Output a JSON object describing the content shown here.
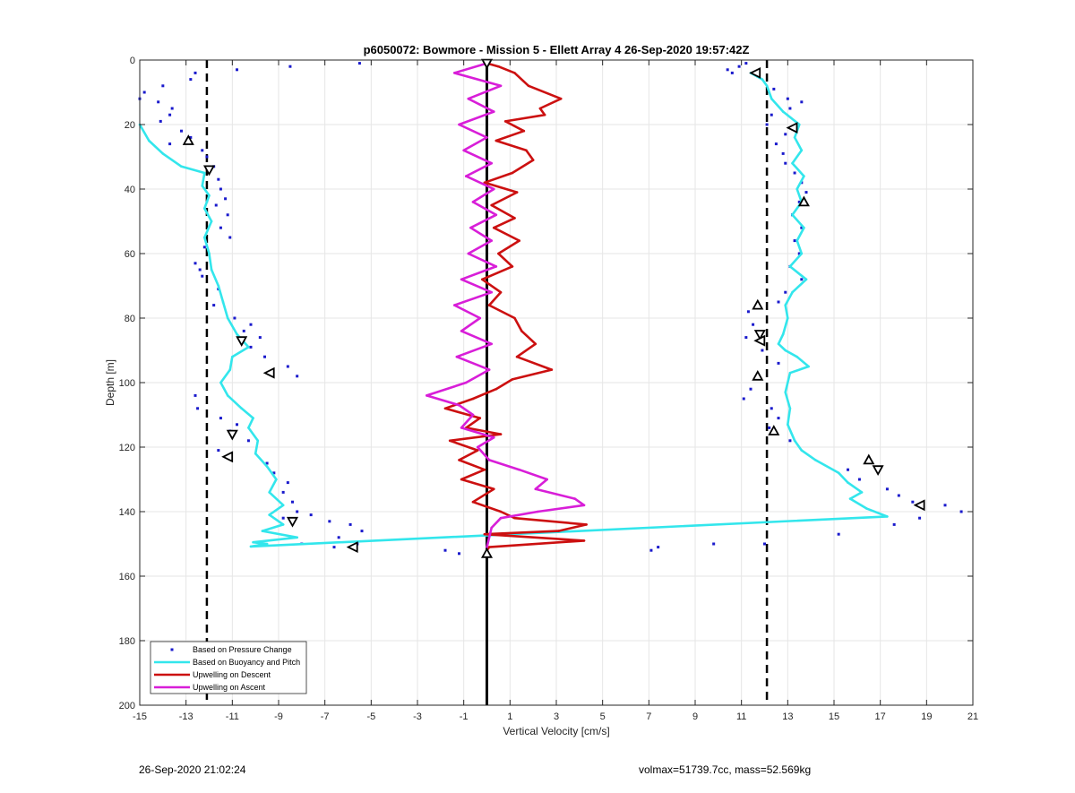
{
  "chart_data": {
    "type": "line",
    "title": "p6050072: Bowmore - Mission 5 - Ellett Array 4 26-Sep-2020 19:57:42Z",
    "xlabel": "Vertical Velocity [cm/s]",
    "ylabel": "Depth [m]",
    "xlim": [
      -15,
      21
    ],
    "ylim": [
      0,
      200
    ],
    "y_reversed": true,
    "grid": true,
    "legend_position": "bottom-left",
    "xticks": [
      -15,
      -13,
      -11,
      -9,
      -7,
      -5,
      -3,
      -1,
      1,
      3,
      5,
      7,
      9,
      11,
      13,
      15,
      17,
      19,
      21
    ],
    "yticks": [
      0,
      20,
      40,
      60,
      80,
      100,
      120,
      140,
      160,
      180,
      200
    ],
    "reference_lines": [
      {
        "style": "dashed",
        "color": "#000000",
        "x": -12.1
      },
      {
        "style": "solid",
        "color": "#000000",
        "x": 0
      },
      {
        "style": "dashed",
        "color": "#000000",
        "x": 12.1
      }
    ],
    "series": [
      {
        "name": "Based on Pressure Change",
        "kind": "points",
        "color": "#1a1acc",
        "points": [
          [
            -5.5,
            1
          ],
          [
            -8.5,
            2
          ],
          [
            -10.8,
            3
          ],
          [
            -12.6,
            4
          ],
          [
            -12.8,
            6
          ],
          [
            -14,
            8
          ],
          [
            -14.8,
            10
          ],
          [
            -15,
            12
          ],
          [
            -14.2,
            13
          ],
          [
            -13.6,
            15
          ],
          [
            -13.7,
            17
          ],
          [
            -14.1,
            19
          ],
          [
            -13.2,
            22
          ],
          [
            -12.8,
            24
          ],
          [
            -13.7,
            26
          ],
          [
            -12.3,
            28
          ],
          [
            -12.1,
            30
          ],
          [
            -11.8,
            33
          ],
          [
            -11.6,
            37
          ],
          [
            -11.5,
            40
          ],
          [
            -11.3,
            43
          ],
          [
            -11.7,
            45
          ],
          [
            -11.2,
            48
          ],
          [
            -11.5,
            52
          ],
          [
            -11.1,
            55
          ],
          [
            -12.2,
            58
          ],
          [
            -12.6,
            63
          ],
          [
            -12.4,
            65
          ],
          [
            -12.3,
            67
          ],
          [
            -11.6,
            71
          ],
          [
            -11.8,
            76
          ],
          [
            -10.9,
            80
          ],
          [
            -10.2,
            82
          ],
          [
            -10.5,
            84
          ],
          [
            -9.8,
            86
          ],
          [
            -10.2,
            89
          ],
          [
            -9.6,
            92
          ],
          [
            -8.6,
            95
          ],
          [
            -8.2,
            98
          ],
          [
            -12.6,
            104
          ],
          [
            -12.5,
            108
          ],
          [
            -11.5,
            111
          ],
          [
            -10.8,
            113
          ],
          [
            -11.1,
            115
          ],
          [
            -10.3,
            118
          ],
          [
            -11.6,
            121
          ],
          [
            -9.5,
            125
          ],
          [
            -9.2,
            128
          ],
          [
            -8.6,
            131
          ],
          [
            -8.8,
            134
          ],
          [
            -8.4,
            137
          ],
          [
            -8.2,
            140
          ],
          [
            -7.6,
            141
          ],
          [
            -8.8,
            142
          ],
          [
            -6.8,
            143
          ],
          [
            -5.9,
            144
          ],
          [
            -5.4,
            146
          ],
          [
            -6.4,
            148
          ],
          [
            -5.6,
            150
          ],
          [
            -6.6,
            151
          ],
          [
            -8,
            150
          ],
          [
            -1.8,
            152
          ],
          [
            -1.2,
            153
          ],
          [
            7.1,
            152
          ],
          [
            7.4,
            151
          ],
          [
            9.8,
            150
          ],
          [
            11.2,
            1
          ],
          [
            10.9,
            2
          ],
          [
            10.4,
            3
          ],
          [
            10.6,
            4
          ],
          [
            11.7,
            5
          ],
          [
            12.4,
            9
          ],
          [
            13,
            12
          ],
          [
            13.6,
            13
          ],
          [
            13.1,
            15
          ],
          [
            12.3,
            17
          ],
          [
            12.1,
            20
          ],
          [
            12.9,
            23
          ],
          [
            12.5,
            26
          ],
          [
            12.8,
            29
          ],
          [
            12.9,
            32
          ],
          [
            13.3,
            35
          ],
          [
            13.6,
            38
          ],
          [
            13.8,
            41
          ],
          [
            13.5,
            44
          ],
          [
            13.2,
            48
          ],
          [
            13.6,
            52
          ],
          [
            13.3,
            56
          ],
          [
            13.5,
            60
          ],
          [
            13.1,
            64
          ],
          [
            13.6,
            68
          ],
          [
            12.9,
            72
          ],
          [
            12.6,
            75
          ],
          [
            11.3,
            78
          ],
          [
            11.5,
            82
          ],
          [
            11.2,
            86
          ],
          [
            11.9,
            90
          ],
          [
            12.6,
            94
          ],
          [
            11.7,
            98
          ],
          [
            11.4,
            102
          ],
          [
            11.1,
            105
          ],
          [
            12.3,
            108
          ],
          [
            12.6,
            111
          ],
          [
            12.2,
            114
          ],
          [
            13.1,
            118
          ],
          [
            15.6,
            127
          ],
          [
            16.1,
            130
          ],
          [
            17.3,
            133
          ],
          [
            17.8,
            135
          ],
          [
            18.4,
            137
          ],
          [
            19.8,
            138
          ],
          [
            20.5,
            140
          ],
          [
            18.7,
            142
          ],
          [
            17.6,
            144
          ],
          [
            15.2,
            147
          ],
          [
            12,
            150
          ]
        ]
      },
      {
        "name": "Based on Buoyancy and Pitch",
        "kind": "line",
        "color": "#33e6ec",
        "points": [
          [
            -15,
            20
          ],
          [
            -14.6,
            25
          ],
          [
            -14,
            29
          ],
          [
            -13.2,
            33
          ],
          [
            -12.2,
            35
          ],
          [
            -12.3,
            39
          ],
          [
            -12,
            42
          ],
          [
            -12.2,
            46
          ],
          [
            -11.9,
            50
          ],
          [
            -12.2,
            55
          ],
          [
            -12,
            60
          ],
          [
            -11.9,
            65
          ],
          [
            -11.6,
            70
          ],
          [
            -11.4,
            75
          ],
          [
            -11.2,
            80
          ],
          [
            -10.8,
            85
          ],
          [
            -10.3,
            89
          ],
          [
            -11,
            92
          ],
          [
            -11.1,
            96
          ],
          [
            -11.5,
            100
          ],
          [
            -11.2,
            104
          ],
          [
            -10.6,
            108
          ],
          [
            -10.1,
            111
          ],
          [
            -10.3,
            114
          ],
          [
            -9.9,
            118
          ],
          [
            -10,
            122
          ],
          [
            -9.5,
            126
          ],
          [
            -9.1,
            130
          ],
          [
            -9.4,
            134
          ],
          [
            -8.8,
            138
          ],
          [
            -9.4,
            141
          ],
          [
            -8.8,
            144
          ],
          [
            -9.7,
            146
          ],
          [
            -8.2,
            148
          ],
          [
            -10.1,
            149.5
          ],
          [
            -9.5,
            150
          ],
          [
            -10.2,
            150.8
          ],
          [
            17.3,
            141.5
          ],
          [
            16.4,
            139
          ],
          [
            15.7,
            136
          ],
          [
            16.2,
            134
          ],
          [
            15.6,
            131
          ],
          [
            15.2,
            128
          ],
          [
            14.2,
            124
          ],
          [
            13.6,
            121
          ],
          [
            13.3,
            118
          ],
          [
            13,
            113
          ],
          [
            13.1,
            108
          ],
          [
            12.9,
            103
          ],
          [
            13.1,
            97
          ],
          [
            13.9,
            95
          ],
          [
            13.4,
            92
          ],
          [
            12.9,
            90
          ],
          [
            12.6,
            88
          ],
          [
            12.8,
            85
          ],
          [
            13,
            80
          ],
          [
            12.9,
            76
          ],
          [
            13.2,
            72
          ],
          [
            13.8,
            68
          ],
          [
            13.1,
            64
          ],
          [
            13.6,
            60
          ],
          [
            13.4,
            56
          ],
          [
            13.7,
            52
          ],
          [
            13.2,
            48
          ],
          [
            13.6,
            44
          ],
          [
            13.4,
            40
          ],
          [
            13.7,
            36
          ],
          [
            13.2,
            32
          ],
          [
            13.6,
            28
          ],
          [
            13.3,
            24
          ],
          [
            13.5,
            20
          ],
          [
            12.8,
            16
          ],
          [
            12.3,
            12
          ],
          [
            12.1,
            8
          ],
          [
            11.9,
            6
          ],
          [
            11.4,
            4
          ]
        ]
      },
      {
        "name": "Upwelling on Descent",
        "kind": "line",
        "color": "#cc1010",
        "points": [
          [
            0,
            1
          ],
          [
            0.5,
            2
          ],
          [
            1.2,
            4
          ],
          [
            1.8,
            8
          ],
          [
            3.2,
            12
          ],
          [
            2.3,
            15
          ],
          [
            2.5,
            17
          ],
          [
            0.8,
            19
          ],
          [
            1.6,
            22
          ],
          [
            0.4,
            25
          ],
          [
            1.7,
            28
          ],
          [
            2,
            31
          ],
          [
            1.1,
            35
          ],
          [
            -0.1,
            38
          ],
          [
            1.3,
            41
          ],
          [
            0.2,
            45
          ],
          [
            1.2,
            49
          ],
          [
            0.3,
            52
          ],
          [
            1.4,
            56
          ],
          [
            0.5,
            60
          ],
          [
            1.1,
            64
          ],
          [
            -0.2,
            68
          ],
          [
            0.6,
            72
          ],
          [
            0.1,
            76
          ],
          [
            1.2,
            80
          ],
          [
            1.5,
            84
          ],
          [
            2.1,
            88
          ],
          [
            1.3,
            92
          ],
          [
            2.8,
            96
          ],
          [
            1.1,
            99
          ],
          [
            0.4,
            102
          ],
          [
            -0.6,
            105
          ],
          [
            -1.8,
            108
          ],
          [
            -0.3,
            111
          ],
          [
            -0.9,
            114
          ],
          [
            0.6,
            116
          ],
          [
            -1.6,
            118
          ],
          [
            -0.4,
            121
          ],
          [
            -1.2,
            124
          ],
          [
            -0.1,
            127
          ],
          [
            -1.1,
            130
          ],
          [
            0.3,
            133
          ],
          [
            -0.6,
            137
          ],
          [
            0.6,
            140
          ],
          [
            1.2,
            142
          ],
          [
            4.3,
            144
          ],
          [
            3.1,
            146
          ],
          [
            -0.1,
            147
          ],
          [
            4.2,
            149
          ],
          [
            0.1,
            151
          ],
          [
            0,
            152
          ]
        ]
      },
      {
        "name": "Upwelling on Ascent",
        "kind": "line",
        "color": "#d81ed8",
        "points": [
          [
            0,
            1
          ],
          [
            -1.4,
            4
          ],
          [
            0.6,
            8
          ],
          [
            -0.8,
            12
          ],
          [
            0.3,
            16
          ],
          [
            -1.2,
            20
          ],
          [
            0,
            24
          ],
          [
            -1,
            28
          ],
          [
            0.2,
            32
          ],
          [
            -0.9,
            36
          ],
          [
            0.3,
            40
          ],
          [
            -0.6,
            44
          ],
          [
            0.4,
            48
          ],
          [
            -0.7,
            52
          ],
          [
            0.2,
            56
          ],
          [
            -0.8,
            60
          ],
          [
            0.4,
            64
          ],
          [
            -1.1,
            68
          ],
          [
            0.2,
            72
          ],
          [
            -1.4,
            76
          ],
          [
            -0.3,
            80
          ],
          [
            -1.1,
            84
          ],
          [
            0.2,
            88
          ],
          [
            -1.3,
            92
          ],
          [
            0.1,
            96
          ],
          [
            -0.9,
            100
          ],
          [
            -2.6,
            104
          ],
          [
            -1.2,
            107
          ],
          [
            -0.6,
            110
          ],
          [
            -1.1,
            114
          ],
          [
            0.3,
            117
          ],
          [
            -0.4,
            120
          ],
          [
            0.1,
            124
          ],
          [
            1.4,
            127
          ],
          [
            2.6,
            130
          ],
          [
            2.1,
            133
          ],
          [
            3.8,
            136
          ],
          [
            4.2,
            138
          ],
          [
            2.2,
            140
          ],
          [
            0.6,
            142
          ],
          [
            0.2,
            145
          ],
          [
            0.1,
            148
          ],
          [
            0,
            151
          ]
        ]
      }
    ],
    "markers": {
      "description_left_and_right_triangles": true,
      "points": [
        [
          0,
          1
        ],
        [
          11.6,
          4
        ],
        [
          -12.9,
          25
        ],
        [
          -12,
          34
        ],
        [
          13.2,
          21
        ],
        [
          13.7,
          44
        ],
        [
          -10.6,
          87
        ],
        [
          -9.4,
          97
        ],
        [
          11.7,
          76
        ],
        [
          11.8,
          85
        ],
        [
          11.8,
          87
        ],
        [
          11.7,
          98
        ],
        [
          -11,
          116
        ],
        [
          -11.2,
          123
        ],
        [
          12.4,
          115
        ],
        [
          -8.4,
          143
        ],
        [
          -5.8,
          151
        ],
        [
          16.5,
          124
        ],
        [
          16.9,
          127
        ],
        [
          18.7,
          138
        ],
        [
          0,
          153
        ]
      ]
    }
  },
  "footer": {
    "left": "26-Sep-2020 21:02:24",
    "right": "volmax=51739.7cc, mass=52.569kg"
  }
}
